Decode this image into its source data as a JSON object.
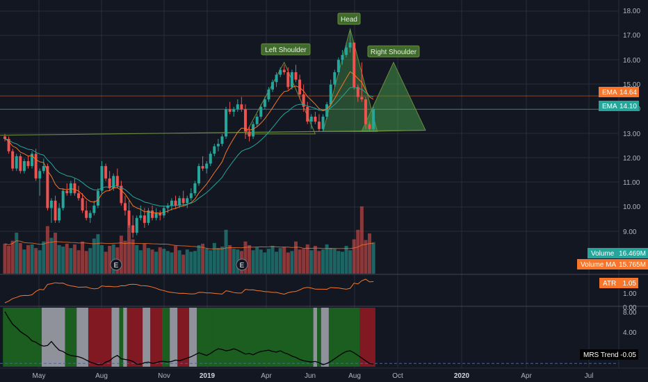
{
  "chart_data": {
    "type": "candlestick",
    "x_ticks": [
      "May",
      "Aug",
      "Nov",
      "2019",
      "Apr",
      "Jun",
      "Aug",
      "Oct",
      "2020",
      "Apr",
      "Jul"
    ],
    "price_axis": {
      "ticks": [
        "18.00",
        "17.00",
        "16.00",
        "15.00",
        "14.00",
        "13.00",
        "12.00",
        "11.00",
        "10.00",
        "9.00"
      ],
      "ylim": [
        8.4,
        18.3
      ]
    },
    "ohlc": [
      [
        13.0,
        13.1,
        12.8,
        12.9
      ],
      [
        12.9,
        13.0,
        12.3,
        12.4
      ],
      [
        12.4,
        12.5,
        11.6,
        11.7
      ],
      [
        11.7,
        12.3,
        11.6,
        12.2
      ],
      [
        12.2,
        12.3,
        11.5,
        11.6
      ],
      [
        11.6,
        12.1,
        11.5,
        12.0
      ],
      [
        12.0,
        12.2,
        11.7,
        11.8
      ],
      [
        11.8,
        12.4,
        11.7,
        12.3
      ],
      [
        12.3,
        12.5,
        11.2,
        11.3
      ],
      [
        11.3,
        11.7,
        10.6,
        11.6
      ],
      [
        11.6,
        12.1,
        11.5,
        11.8
      ],
      [
        11.8,
        11.9,
        10.0,
        10.1
      ],
      [
        10.1,
        10.5,
        9.5,
        10.4
      ],
      [
        10.4,
        10.6,
        9.5,
        9.6
      ],
      [
        9.6,
        10.3,
        9.5,
        10.1
      ],
      [
        10.1,
        10.9,
        10.0,
        10.8
      ],
      [
        10.8,
        11.1,
        10.6,
        10.7
      ],
      [
        10.7,
        11.2,
        10.6,
        11.1
      ],
      [
        11.1,
        11.3,
        10.6,
        10.7
      ],
      [
        10.7,
        11.0,
        10.4,
        10.5
      ],
      [
        10.5,
        10.7,
        9.9,
        10.0
      ],
      [
        10.0,
        10.4,
        9.6,
        9.7
      ],
      [
        9.7,
        10.0,
        9.5,
        9.9
      ],
      [
        9.9,
        10.4,
        9.8,
        10.2
      ],
      [
        10.2,
        10.9,
        10.1,
        10.8
      ],
      [
        10.8,
        12.0,
        10.7,
        11.8
      ],
      [
        11.8,
        11.9,
        11.2,
        11.3
      ],
      [
        11.3,
        11.6,
        10.8,
        10.9
      ],
      [
        10.9,
        11.5,
        10.8,
        11.4
      ],
      [
        11.4,
        11.7,
        10.9,
        11.0
      ],
      [
        11.0,
        11.2,
        10.2,
        10.3
      ],
      [
        10.3,
        10.6,
        9.8,
        10.0
      ],
      [
        10.0,
        10.4,
        9.3,
        9.4
      ],
      [
        9.4,
        9.8,
        8.9,
        9.1
      ],
      [
        9.1,
        9.8,
        9.0,
        9.7
      ],
      [
        9.7,
        10.2,
        9.6,
        9.8
      ],
      [
        9.8,
        10.1,
        9.3,
        9.5
      ],
      [
        9.5,
        10.1,
        9.4,
        10.0
      ],
      [
        10.0,
        10.2,
        9.6,
        9.7
      ],
      [
        9.7,
        10.1,
        9.6,
        9.9
      ],
      [
        9.9,
        10.0,
        9.6,
        9.8
      ],
      [
        9.8,
        10.2,
        9.7,
        10.1
      ],
      [
        10.1,
        10.3,
        9.9,
        10.2
      ],
      [
        10.2,
        10.5,
        10.0,
        10.4
      ],
      [
        10.4,
        10.6,
        10.1,
        10.2
      ],
      [
        10.2,
        10.6,
        10.1,
        10.5
      ],
      [
        10.5,
        10.8,
        10.2,
        10.3
      ],
      [
        10.3,
        10.6,
        10.1,
        10.5
      ],
      [
        10.5,
        10.9,
        10.4,
        10.7
      ],
      [
        10.7,
        11.2,
        10.6,
        11.1
      ],
      [
        11.1,
        11.9,
        11.0,
        11.8
      ],
      [
        11.8,
        12.2,
        11.6,
        11.7
      ],
      [
        11.7,
        12.0,
        11.5,
        11.9
      ],
      [
        11.9,
        12.4,
        11.8,
        12.3
      ],
      [
        12.3,
        12.7,
        12.2,
        12.6
      ],
      [
        12.6,
        12.9,
        12.4,
        12.7
      ],
      [
        12.7,
        13.1,
        12.6,
        13.0
      ],
      [
        13.0,
        14.2,
        12.9,
        14.1
      ],
      [
        14.1,
        14.4,
        13.9,
        14.0
      ],
      [
        14.0,
        14.2,
        13.8,
        14.1
      ],
      [
        14.1,
        14.5,
        14.0,
        14.3
      ],
      [
        14.3,
        14.6,
        14.0,
        14.1
      ],
      [
        14.1,
        14.3,
        12.9,
        13.2
      ],
      [
        13.2,
        13.4,
        12.8,
        13.0
      ],
      [
        13.0,
        13.6,
        12.9,
        13.5
      ],
      [
        13.5,
        13.9,
        13.4,
        13.8
      ],
      [
        13.8,
        14.3,
        13.7,
        14.2
      ],
      [
        14.2,
        14.6,
        14.1,
        14.5
      ],
      [
        14.5,
        15.0,
        14.4,
        14.9
      ],
      [
        14.9,
        15.3,
        14.8,
        15.2
      ],
      [
        15.2,
        15.6,
        15.0,
        15.5
      ],
      [
        15.5,
        15.8,
        15.4,
        15.7
      ],
      [
        15.7,
        15.9,
        15.5,
        15.6
      ],
      [
        15.6,
        15.8,
        14.9,
        15.0
      ],
      [
        15.0,
        15.7,
        14.9,
        15.6
      ],
      [
        15.6,
        15.9,
        15.2,
        15.3
      ],
      [
        15.3,
        15.5,
        14.5,
        14.7
      ],
      [
        14.7,
        15.1,
        14.0,
        14.2
      ],
      [
        14.2,
        14.4,
        13.5,
        13.6
      ],
      [
        13.6,
        13.9,
        13.3,
        13.8
      ],
      [
        13.8,
        14.0,
        13.5,
        13.6
      ],
      [
        13.6,
        13.9,
        13.2,
        13.3
      ],
      [
        13.3,
        13.9,
        13.2,
        13.8
      ],
      [
        13.8,
        14.4,
        13.7,
        14.3
      ],
      [
        14.3,
        15.3,
        14.2,
        15.1
      ],
      [
        15.1,
        15.7,
        15.0,
        15.6
      ],
      [
        15.6,
        16.2,
        15.5,
        16.1
      ],
      [
        16.1,
        16.5,
        15.9,
        16.3
      ],
      [
        16.3,
        16.8,
        16.2,
        16.6
      ],
      [
        16.6,
        17.3,
        16.4,
        16.8
      ],
      [
        16.8,
        16.8,
        14.9,
        15.0
      ],
      [
        15.0,
        15.1,
        14.4,
        14.6
      ],
      [
        14.6,
        16.0,
        14.4,
        14.5
      ],
      [
        14.5,
        14.6,
        13.3,
        13.5
      ],
      [
        13.5,
        13.6,
        13.2,
        13.3
      ],
      [
        13.3,
        14.2,
        13.2,
        14.1
      ]
    ],
    "volume": [
      4.1,
      3.8,
      4.5,
      5.6,
      4.2,
      3.3,
      3.9,
      4.0,
      3.5,
      3.2,
      4.4,
      6.5,
      4.9,
      5.6,
      3.9,
      3.7,
      4.1,
      3.5,
      4.0,
      3.2,
      4.4,
      3.1,
      3.5,
      4.8,
      5.4,
      3.9,
      3.0,
      3.8,
      4.0,
      3.6,
      5.2,
      4.5,
      6.6,
      4.7,
      3.9,
      3.2,
      4.1,
      3.5,
      3.3,
      3.0,
      3.6,
      3.4,
      3.1,
      2.9,
      3.8,
      3.2,
      2.6,
      3.3,
      3.0,
      3.1,
      3.9,
      4.1,
      3.4,
      3.2,
      4.2,
      3.5,
      3.7,
      6.0,
      3.9,
      3.4,
      3.3,
      3.1,
      4.4,
      3.9,
      3.2,
      3.6,
      3.3,
      2.9,
      3.4,
      3.8,
      3.0,
      3.5,
      3.6,
      2.9,
      3.1,
      4.4,
      3.3,
      3.4,
      4.0,
      3.2,
      3.8,
      3.1,
      3.3,
      4.0,
      3.5,
      3.4,
      3.1,
      3.0,
      3.8,
      3.2,
      4.7,
      6.0,
      9.2,
      4.6,
      5.5,
      4.3
    ],
    "volume_axis_max": 9.5,
    "labels": {
      "left_shoulder": "Left Shoulder",
      "head": "Head",
      "right_shoulder": "Right Shoulder",
      "earnings": "E"
    },
    "badges": {
      "ema_slow_label": "EMA",
      "ema_slow_value": "14.64",
      "ema_fast_label": "EMA",
      "ema_fast_value": "14.10",
      "volume_label": "Volume",
      "volume_value": "16.469M",
      "volume_ma_label": "Volume MA",
      "volume_ma_value": "15.765M",
      "atr_label": "ATR",
      "atr_value": "1.05",
      "mrs_label": "MRS Trend",
      "mrs_value": "-0.05"
    },
    "atr_axis": {
      "ticks": [
        "1.00"
      ]
    },
    "mrs_axis": {
      "ticks": [
        "8.00",
        "4.00",
        "0.00"
      ],
      "ylim": [
        -0.5,
        8.4
      ]
    },
    "mrs_values": [
      7.8,
      6.8,
      5.9,
      5.4,
      4.8,
      4.4,
      4.0,
      3.4,
      3.2,
      2.8,
      2.6,
      2.7,
      3.3,
      2.6,
      2.0,
      1.8,
      1.4,
      1.2,
      1.1,
      1.0,
      0.8,
      0.5,
      0.2,
      0.0,
      -0.2,
      -0.2,
      0.2,
      0.4,
      0.9,
      1.2,
      0.7,
      0.6,
      0.5,
      0.3,
      -0.1,
      -0.1,
      0.1,
      0.2,
      0.0,
      0.1,
      0.3,
      0.3,
      0.2,
      0.3,
      0.5,
      0.4,
      0.6,
      0.8,
      1.0,
      1.3,
      1.6,
      1.4,
      1.2,
      1.5,
      1.9,
      2.2,
      2.1,
      1.9,
      2.0,
      2.2,
      2.0,
      1.7,
      1.4,
      1.5,
      1.3,
      1.6,
      1.8,
      1.9,
      2.0,
      1.8,
      1.7,
      1.9,
      1.6,
      1.4,
      1.1,
      0.9,
      0.6,
      0.4,
      0.3,
      0.2,
      0.3,
      0.1,
      -0.2,
      0.0,
      0.3,
      0.7,
      1.1,
      1.5,
      1.8,
      1.9,
      1.6,
      1.2,
      0.8,
      0.4,
      0.0,
      -0.1
    ],
    "mrs_background_segments": [
      {
        "from": 0,
        "to": 10,
        "state": "green"
      },
      {
        "from": 10,
        "to": 16,
        "state": "gray"
      },
      {
        "from": 16,
        "to": 19,
        "state": "green"
      },
      {
        "from": 19,
        "to": 22,
        "state": "gray"
      },
      {
        "from": 22,
        "to": 28,
        "state": "red"
      },
      {
        "from": 28,
        "to": 30,
        "state": "gray"
      },
      {
        "from": 30,
        "to": 31,
        "state": "green"
      },
      {
        "from": 31,
        "to": 32,
        "state": "gray"
      },
      {
        "from": 32,
        "to": 36,
        "state": "red"
      },
      {
        "from": 36,
        "to": 38,
        "state": "gray"
      },
      {
        "from": 38,
        "to": 41,
        "state": "red"
      },
      {
        "from": 41,
        "to": 43,
        "state": "green"
      },
      {
        "from": 43,
        "to": 45,
        "state": "gray"
      },
      {
        "from": 45,
        "to": 48,
        "state": "red"
      },
      {
        "from": 48,
        "to": 50,
        "state": "gray"
      },
      {
        "from": 50,
        "to": 54,
        "state": "green"
      },
      {
        "from": 54,
        "to": 80,
        "state": "green"
      },
      {
        "from": 80,
        "to": 81,
        "state": "gray"
      },
      {
        "from": 81,
        "to": 82,
        "state": "green"
      },
      {
        "from": 82,
        "to": 84,
        "state": "gray"
      },
      {
        "from": 84,
        "to": 92,
        "state": "green"
      },
      {
        "from": 92,
        "to": 96,
        "state": "red"
      }
    ],
    "colors": {
      "background": "#131722",
      "up": "#26a69a",
      "down": "#ef5350",
      "ema_slow": "#f7762b",
      "ema_fast": "#26a69a",
      "neckline": "#6c8b3a",
      "pattern_fill": "#4caf50",
      "label_bg": "#3f6b2d",
      "atr_line": "#f7762b",
      "mrs_line": "#000000",
      "mrs_green": "#1b5e20",
      "mrs_red": "#801922",
      "mrs_gray": "#8f929b",
      "grid": "#2a2e39",
      "axis_text": "#b2b5be"
    }
  }
}
